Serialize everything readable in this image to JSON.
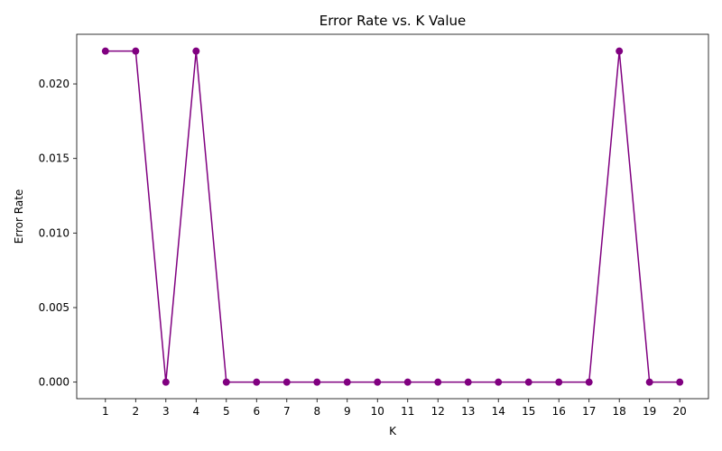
{
  "chart_data": {
    "type": "line",
    "title": "Error Rate vs. K Value",
    "xlabel": "K",
    "ylabel": "Error Rate",
    "x": [
      1,
      2,
      3,
      4,
      5,
      6,
      7,
      8,
      9,
      10,
      11,
      12,
      13,
      14,
      15,
      16,
      17,
      18,
      19,
      20
    ],
    "series": [
      {
        "values": [
          0.0222,
          0.0222,
          0.0,
          0.0222,
          0.0,
          0.0,
          0.0,
          0.0,
          0.0,
          0.0,
          0.0,
          0.0,
          0.0,
          0.0,
          0.0,
          0.0,
          0.0,
          0.0222,
          0.0,
          0.0
        ],
        "color": "#800080",
        "marker": "circle"
      }
    ],
    "xlim": [
      0.05,
      20.95
    ],
    "ylim": [
      -0.00111,
      0.02333
    ],
    "yticks": [
      0.0,
      0.005,
      0.01,
      0.015,
      0.02
    ],
    "ytick_labels": [
      "0.000",
      "0.005",
      "0.010",
      "0.015",
      "0.020"
    ],
    "grid": false,
    "legend": "none"
  }
}
